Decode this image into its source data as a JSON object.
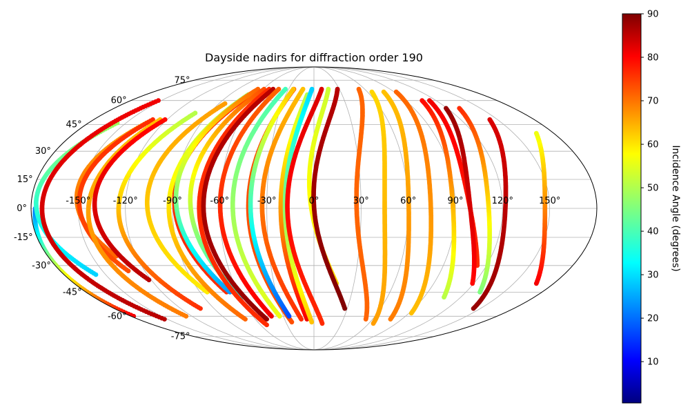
{
  "chart_data": {
    "type": "scatter",
    "projection": "mollweide",
    "title": "Dayside nadirs for diffraction order 190",
    "xlabel": "",
    "ylabel": "",
    "x_tick_labels": [
      "-150°",
      "-120°",
      "-90°",
      "-60°",
      "-30°",
      "0°",
      "30°",
      "60°",
      "90°",
      "120°",
      "150°"
    ],
    "x_tick_values": [
      -150,
      -120,
      -90,
      -60,
      -30,
      0,
      30,
      60,
      90,
      120,
      150
    ],
    "y_tick_labels": [
      "-75°",
      "-60°",
      "-45°",
      "-30°",
      "-15°",
      "0°",
      "15°",
      "30°",
      "45°",
      "60°",
      "75°"
    ],
    "y_tick_values": [
      -75,
      -60,
      -45,
      -30,
      -15,
      0,
      15,
      30,
      45,
      60,
      75
    ],
    "xlim": [
      -180,
      180
    ],
    "ylim": [
      -90,
      90
    ],
    "grid": true,
    "colormap": "jet",
    "colorbar": {
      "label": "Incidence Angle (degrees)",
      "range": [
        0.5,
        90
      ],
      "tick_labels": [
        "10",
        "20",
        "30",
        "40",
        "50",
        "60",
        "70",
        "80",
        "90"
      ],
      "tick_values": [
        10,
        20,
        30,
        40,
        50,
        60,
        70,
        80,
        90
      ]
    },
    "tracks": [
      {
        "lon_mid": -178,
        "amp": 2,
        "lat_top": 0,
        "lat_bot": -60,
        "inc_top": 22,
        "inc_bot": 80
      },
      {
        "lon_mid": -164,
        "amp": 20,
        "lat_top": 46,
        "lat_bot": -35,
        "inc_top": 48,
        "inc_bot": 30
      },
      {
        "lon_mid": -160,
        "amp": 20,
        "lat_top": 60,
        "lat_bot": -62,
        "inc_top": 80,
        "inc_bot": 85
      },
      {
        "lon_mid": -140,
        "amp": 18,
        "lat_top": 46,
        "lat_bot": -25,
        "inc_top": 65,
        "inc_bot": 70
      },
      {
        "lon_mid": -138,
        "amp": 18,
        "lat_top": 48,
        "lat_bot": -33,
        "inc_top": 75,
        "inc_bot": 72
      },
      {
        "lon_mid": -132,
        "amp": 18,
        "lat_top": 48,
        "lat_bot": -60,
        "inc_top": 62,
        "inc_bot": 68
      },
      {
        "lon_mid": -128,
        "amp": 18,
        "lat_top": 48,
        "lat_bot": -38,
        "inc_top": 78,
        "inc_bot": 85
      },
      {
        "lon_mid": -110,
        "amp": 22,
        "lat_top": 52,
        "lat_bot": -55,
        "inc_top": 50,
        "inc_bot": 75
      },
      {
        "lon_mid": -92,
        "amp": 22,
        "lat_top": 58,
        "lat_bot": -45,
        "inc_top": 65,
        "inc_bot": 58
      },
      {
        "lon_mid": -76,
        "amp": 20,
        "lat_top": 62,
        "lat_bot": -45,
        "inc_top": 75,
        "inc_bot": 75
      },
      {
        "lon_mid": -78,
        "amp": 22,
        "lat_top": 64,
        "lat_bot": -62,
        "inc_top": 48,
        "inc_bot": 70
      },
      {
        "lon_mid": -74,
        "amp": 22,
        "lat_top": 68,
        "lat_bot": -45,
        "inc_top": 70,
        "inc_bot": 25
      },
      {
        "lon_mid": -66,
        "amp": 20,
        "lat_top": 68,
        "lat_bot": -48,
        "inc_top": 72,
        "inc_bot": 35
      },
      {
        "lon_mid": -60,
        "amp": 20,
        "lat_top": 68,
        "lat_bot": -66,
        "inc_top": 75,
        "inc_bot": 75
      },
      {
        "lon_mid": -56,
        "amp": 22,
        "lat_top": 68,
        "lat_bot": -62,
        "inc_top": 85,
        "inc_bot": 88
      },
      {
        "lon_mid": -48,
        "amp": 18,
        "lat_top": 68,
        "lat_bot": -60,
        "inc_top": 70,
        "inc_bot": 80
      },
      {
        "lon_mid": -40,
        "amp": 18,
        "lat_top": 68,
        "lat_bot": -60,
        "inc_top": 40,
        "inc_bot": 55
      },
      {
        "lon_mid": -30,
        "amp": 18,
        "lat_top": 68,
        "lat_bot": -64,
        "inc_top": 72,
        "inc_bot": 72
      },
      {
        "lon_mid": -30,
        "amp": 16,
        "lat_top": 68,
        "lat_bot": -60,
        "inc_top": 62,
        "inc_bot": 18
      },
      {
        "lon_mid": -20,
        "amp": 20,
        "lat_top": 68,
        "lat_bot": -62,
        "inc_top": 62,
        "inc_bot": 75
      },
      {
        "lon_mid": -12,
        "amp": 14,
        "lat_top": 64,
        "lat_bot": -62,
        "inc_top": 50,
        "inc_bot": 80
      },
      {
        "lon_mid": -8,
        "amp": 16,
        "lat_top": 68,
        "lat_bot": -64,
        "inc_top": 30,
        "inc_bot": 62
      },
      {
        "lon_mid": 0,
        "amp": 26,
        "lat_top": 68,
        "lat_bot": -65,
        "inc_top": 82,
        "inc_bot": 75
      },
      {
        "lon_mid": 10,
        "amp": 20,
        "lat_top": 68,
        "lat_bot": -40,
        "inc_top": 52,
        "inc_bot": 60
      },
      {
        "lon_mid": 18,
        "amp": 28,
        "lat_top": 68,
        "lat_bot": -55,
        "inc_top": 85,
        "inc_bot": 90
      },
      {
        "lon_mid": 44,
        "amp": 26,
        "lat_top": 68,
        "lat_bot": -62,
        "inc_top": 70,
        "inc_bot": 70
      },
      {
        "lon_mid": 58,
        "amp": 20,
        "lat_top": 66,
        "lat_bot": -65,
        "inc_top": 60,
        "inc_bot": 65
      },
      {
        "lon_mid": 72,
        "amp": 18,
        "lat_top": 66,
        "lat_bot": -62,
        "inc_top": 62,
        "inc_bot": 68
      },
      {
        "lon_mid": 86,
        "amp": 18,
        "lat_top": 66,
        "lat_bot": -58,
        "inc_top": 70,
        "inc_bot": 62
      },
      {
        "lon_mid": 100,
        "amp": 18,
        "lat_top": 60,
        "lat_bot": -48,
        "inc_top": 78,
        "inc_bot": 50
      },
      {
        "lon_mid": 108,
        "amp": 16,
        "lat_top": 60,
        "lat_bot": -30,
        "inc_top": 80,
        "inc_bot": 75
      },
      {
        "lon_mid": 112,
        "amp": 20,
        "lat_top": 55,
        "lat_bot": -40,
        "inc_top": 88,
        "inc_bot": 78
      },
      {
        "lon_mid": 124,
        "amp": 20,
        "lat_top": 55,
        "lat_bot": -45,
        "inc_top": 75,
        "inc_bot": 45
      },
      {
        "lon_mid": 136,
        "amp": 22,
        "lat_top": 48,
        "lat_bot": -55,
        "inc_top": 82,
        "inc_bot": 88
      },
      {
        "lon_mid": 160,
        "amp": 20,
        "lat_top": 40,
        "lat_bot": -40,
        "inc_top": 55,
        "inc_bot": 80
      }
    ]
  }
}
